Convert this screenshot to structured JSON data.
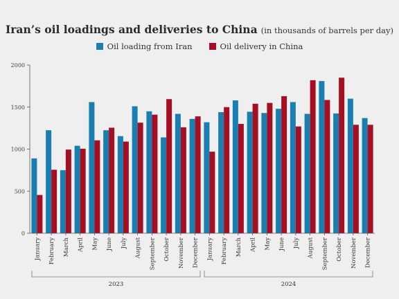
{
  "chart_data": {
    "type": "bar",
    "title": "Iran’s oil loadings and deliveries to China",
    "subtitle": "(in thousands of barrels per day)",
    "xlabel": "",
    "ylabel": "",
    "ylim": [
      0,
      2000
    ],
    "yticks": [
      0,
      500,
      1000,
      1500,
      2000
    ],
    "grid": false,
    "legend_position": "top",
    "categories": [
      "January",
      "February",
      "March",
      "April",
      "May",
      "June",
      "July",
      "August",
      "September",
      "October",
      "November",
      "December",
      "January",
      "February",
      "March",
      "April",
      "May",
      "June",
      "July",
      "August",
      "September",
      "October",
      "November",
      "December"
    ],
    "groups": [
      {
        "label": "2023",
        "start": 0,
        "end": 11
      },
      {
        "label": "2024",
        "start": 12,
        "end": 23
      }
    ],
    "series": [
      {
        "name": "Oil loading from Iran",
        "color": "#1a7fb0",
        "values": [
          890,
          1225,
          750,
          1040,
          1560,
          1225,
          1155,
          1510,
          1450,
          1140,
          1420,
          1360,
          1320,
          1440,
          1580,
          1445,
          1430,
          1480,
          1560,
          1420,
          1810,
          1425,
          1600,
          1370
        ]
      },
      {
        "name": "Oil delivery in China",
        "color": "#a50f24",
        "values": [
          455,
          755,
          995,
          1005,
          1105,
          1255,
          1090,
          1315,
          1410,
          1595,
          1260,
          1390,
          970,
          1500,
          1300,
          1540,
          1550,
          1630,
          1270,
          1820,
          1585,
          1850,
          1290,
          1290
        ]
      }
    ]
  }
}
